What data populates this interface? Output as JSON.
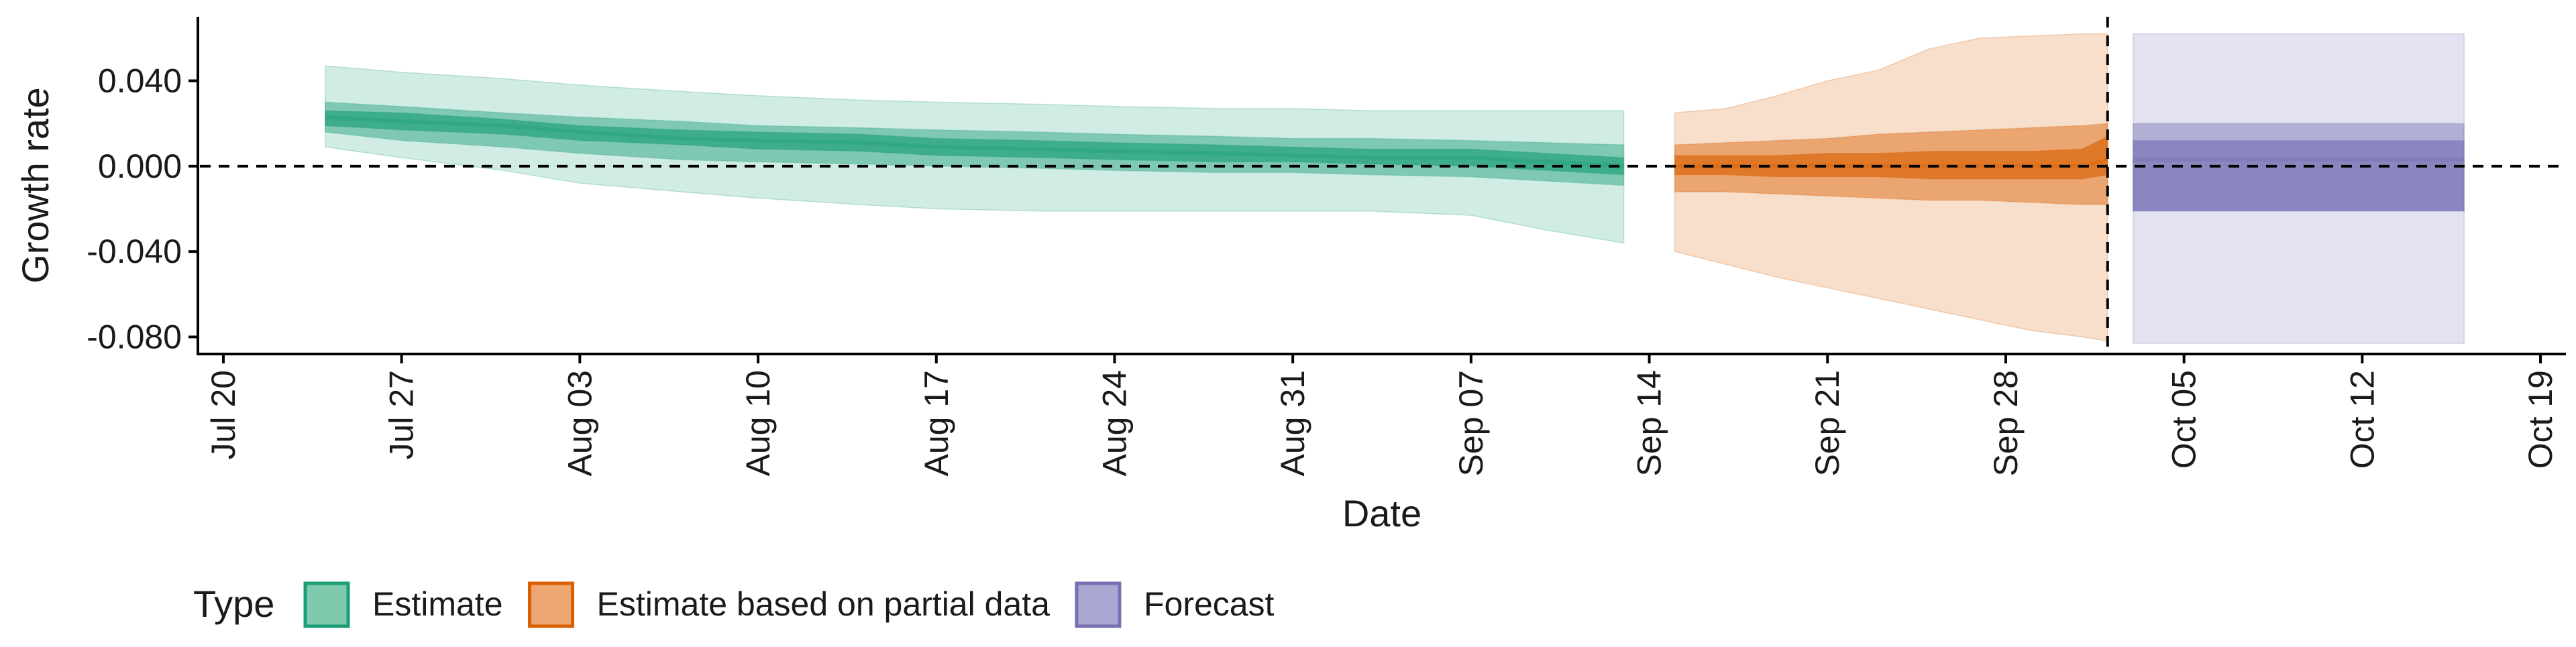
{
  "chart_data": {
    "type": "area",
    "xlabel": "Date",
    "ylabel": "Growth rate",
    "x_range": [
      "2020-07-19",
      "2020-10-20"
    ],
    "ylim": [
      -0.088,
      0.07
    ],
    "x_ticks": [
      {
        "date": "2020-07-20",
        "label": "Jul 20"
      },
      {
        "date": "2020-07-27",
        "label": "Jul 27"
      },
      {
        "date": "2020-08-03",
        "label": "Aug 03"
      },
      {
        "date": "2020-08-10",
        "label": "Aug 10"
      },
      {
        "date": "2020-08-17",
        "label": "Aug 17"
      },
      {
        "date": "2020-08-24",
        "label": "Aug 24"
      },
      {
        "date": "2020-08-31",
        "label": "Aug 31"
      },
      {
        "date": "2020-09-07",
        "label": "Sep 07"
      },
      {
        "date": "2020-09-14",
        "label": "Sep 14"
      },
      {
        "date": "2020-09-21",
        "label": "Sep 21"
      },
      {
        "date": "2020-09-28",
        "label": "Sep 28"
      },
      {
        "date": "2020-10-05",
        "label": "Oct 05"
      },
      {
        "date": "2020-10-12",
        "label": "Oct 12"
      },
      {
        "date": "2020-10-19",
        "label": "Oct 19"
      }
    ],
    "y_ticks": [
      {
        "value": 0.04,
        "label": "0.040"
      },
      {
        "value": 0.0,
        "label": "0.000"
      },
      {
        "value": -0.04,
        "label": "-0.040"
      },
      {
        "value": -0.08,
        "label": "-0.080"
      }
    ],
    "reference_lines": {
      "horizontal_y": 0.0,
      "vertical_date": "2020-10-02",
      "style": "dashed"
    },
    "grid": false,
    "legend": {
      "title": "Type",
      "placement": "bottom-left",
      "entries": [
        {
          "label": "Estimate",
          "fill": "#7fc9ad",
          "border": "#1b9e77"
        },
        {
          "label": "Estimate based on partial data",
          "fill": "#eea672",
          "border": "#d95f02"
        },
        {
          "label": "Forecast",
          "fill": "#a9a6d2",
          "border": "#7570b3"
        }
      ]
    },
    "series": [
      {
        "type_label": "Estimate",
        "color": "#1b9e77",
        "x": [
          "2020-07-24",
          "2020-07-27",
          "2020-07-31",
          "2020-08-03",
          "2020-08-07",
          "2020-08-10",
          "2020-08-14",
          "2020-08-17",
          "2020-08-21",
          "2020-08-24",
          "2020-08-28",
          "2020-08-31",
          "2020-09-03",
          "2020-09-07",
          "2020-09-10",
          "2020-09-13"
        ],
        "median": [
          0.023,
          0.021,
          0.019,
          0.016,
          0.013,
          0.012,
          0.011,
          0.009,
          0.008,
          0.007,
          0.006,
          0.005,
          0.004,
          0.004,
          0.002,
          0.0
        ],
        "band_90": {
          "lower": [
            0.009,
            0.004,
            -0.002,
            -0.008,
            -0.012,
            -0.015,
            -0.018,
            -0.02,
            -0.021,
            -0.021,
            -0.021,
            -0.021,
            -0.021,
            -0.023,
            -0.03,
            -0.036
          ],
          "upper": [
            0.047,
            0.044,
            0.041,
            0.038,
            0.035,
            0.033,
            0.031,
            0.03,
            0.029,
            0.028,
            0.027,
            0.027,
            0.026,
            0.026,
            0.026,
            0.026
          ]
        },
        "band_50": {
          "lower": [
            0.016,
            0.012,
            0.009,
            0.006,
            0.003,
            0.002,
            0.001,
            0.0,
            -0.001,
            -0.002,
            -0.003,
            -0.003,
            -0.004,
            -0.005,
            -0.007,
            -0.009
          ],
          "upper": [
            0.03,
            0.028,
            0.025,
            0.023,
            0.021,
            0.019,
            0.018,
            0.017,
            0.016,
            0.015,
            0.014,
            0.013,
            0.013,
            0.012,
            0.011,
            0.01
          ]
        },
        "band_20": {
          "lower": [
            0.019,
            0.017,
            0.015,
            0.012,
            0.01,
            0.008,
            0.007,
            0.005,
            0.004,
            0.003,
            0.002,
            0.002,
            0.001,
            0.0,
            -0.002,
            -0.004
          ],
          "upper": [
            0.026,
            0.025,
            0.022,
            0.019,
            0.017,
            0.016,
            0.015,
            0.013,
            0.012,
            0.011,
            0.01,
            0.009,
            0.008,
            0.008,
            0.006,
            0.004
          ]
        }
      },
      {
        "type_label": "Estimate based on partial data",
        "color": "#d95f02",
        "x": [
          "2020-09-15",
          "2020-09-17",
          "2020-09-19",
          "2020-09-21",
          "2020-09-23",
          "2020-09-25",
          "2020-09-27",
          "2020-09-29",
          "2020-10-01",
          "2020-10-02"
        ],
        "median": [
          0.0,
          0.0,
          0.0,
          0.0,
          0.0,
          0.0,
          0.0,
          0.0,
          0.0,
          0.003
        ],
        "band_90": {
          "lower": [
            -0.04,
            -0.046,
            -0.052,
            -0.057,
            -0.062,
            -0.067,
            -0.072,
            -0.077,
            -0.08,
            -0.082
          ],
          "upper": [
            0.025,
            0.027,
            0.033,
            0.04,
            0.045,
            0.055,
            0.06,
            0.061,
            0.062,
            0.062
          ]
        },
        "band_50": {
          "lower": [
            -0.012,
            -0.012,
            -0.013,
            -0.014,
            -0.015,
            -0.016,
            -0.016,
            -0.017,
            -0.018,
            -0.018
          ],
          "upper": [
            0.01,
            0.011,
            0.012,
            0.013,
            0.015,
            0.016,
            0.017,
            0.018,
            0.019,
            0.02
          ]
        },
        "band_20": {
          "lower": [
            -0.004,
            -0.004,
            -0.005,
            -0.005,
            -0.005,
            -0.006,
            -0.006,
            -0.006,
            -0.006,
            -0.004
          ],
          "upper": [
            0.005,
            0.005,
            0.005,
            0.006,
            0.006,
            0.007,
            0.007,
            0.007,
            0.008,
            0.014
          ]
        }
      },
      {
        "type_label": "Forecast",
        "color": "#7570b3",
        "x": [
          "2020-10-03",
          "2020-10-16"
        ],
        "median": [
          0.003,
          0.003
        ],
        "band_90": {
          "lower": [
            -0.083,
            -0.083
          ],
          "upper": [
            0.062,
            0.062
          ]
        },
        "band_50": {
          "lower": [
            -0.021,
            -0.021
          ],
          "upper": [
            0.02,
            0.02
          ]
        },
        "band_20": {
          "lower": [
            -0.021,
            -0.021
          ],
          "upper": [
            0.012,
            0.012
          ]
        }
      }
    ]
  }
}
